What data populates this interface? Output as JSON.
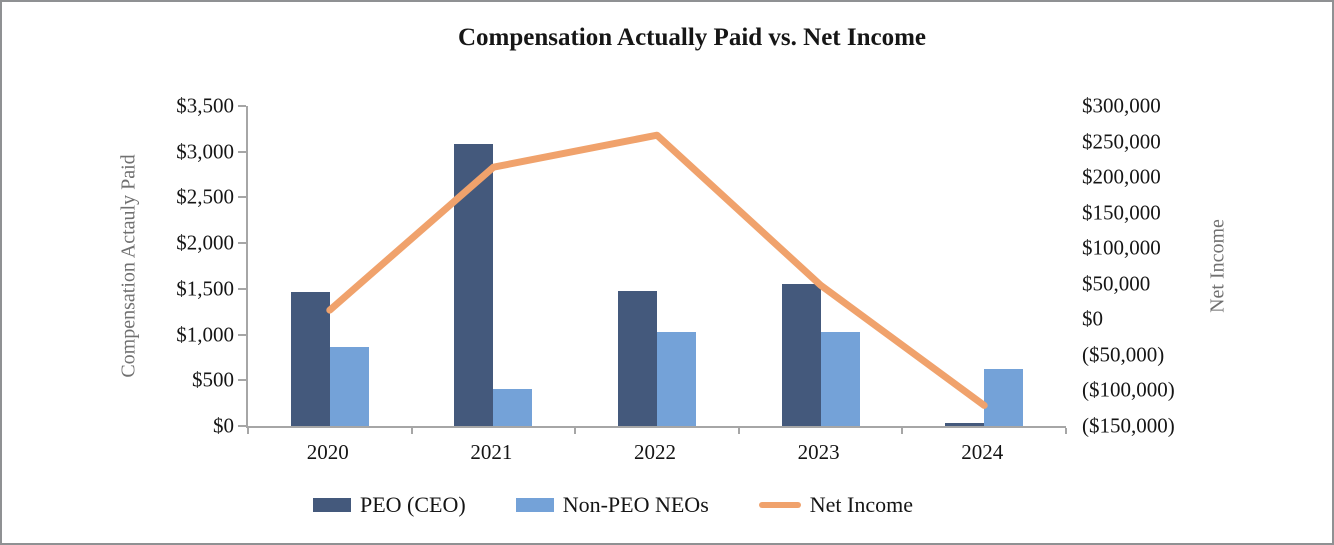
{
  "chart_data": {
    "type": "combo",
    "title": "Compensation Actually Paid vs. Net Income",
    "categories": [
      "2020",
      "2021",
      "2022",
      "2023",
      "2024"
    ],
    "series": [
      {
        "name": "PEO (CEO)",
        "type": "bar",
        "axis": "left",
        "color": "#44597C",
        "values": [
          1470,
          3080,
          1480,
          1550,
          30
        ]
      },
      {
        "name": "Non-PEO NEOs",
        "type": "bar",
        "axis": "left",
        "color": "#74A2D8",
        "values": [
          860,
          410,
          1030,
          1030,
          620
        ]
      },
      {
        "name": "Net Income",
        "type": "line",
        "axis": "right",
        "color": "#F0A26C",
        "values": [
          13000,
          214000,
          259000,
          48000,
          -121000
        ]
      }
    ],
    "left_axis": {
      "title": "Compensation Actauly Paid",
      "ylim": [
        0,
        3500
      ],
      "tick_labels": [
        "$3,500",
        "$3,000",
        "$2,500",
        "$2,000",
        "$1,500",
        "$1,000",
        "$500",
        "$0"
      ]
    },
    "right_axis": {
      "title": "Net Income",
      "ylim": [
        -150000,
        300000
      ],
      "tick_labels": [
        "$300,000",
        "$250,000",
        "$200,000",
        "$150,000",
        "$100,000",
        "$50,000",
        "$0",
        "($50,000)",
        "($100,000)",
        "($150,000)"
      ]
    },
    "x_axis": {
      "tick_labels": [
        "2020",
        "2021",
        "2022",
        "2023",
        "2024"
      ]
    },
    "legend_position": "bottom",
    "grid": false,
    "colors": {
      "axis_line": "#A6A6A6",
      "axis_title_text": "#707070",
      "tick_text": "#151515",
      "frame_border": "#8F9193",
      "background": "#FFFFFF"
    }
  }
}
